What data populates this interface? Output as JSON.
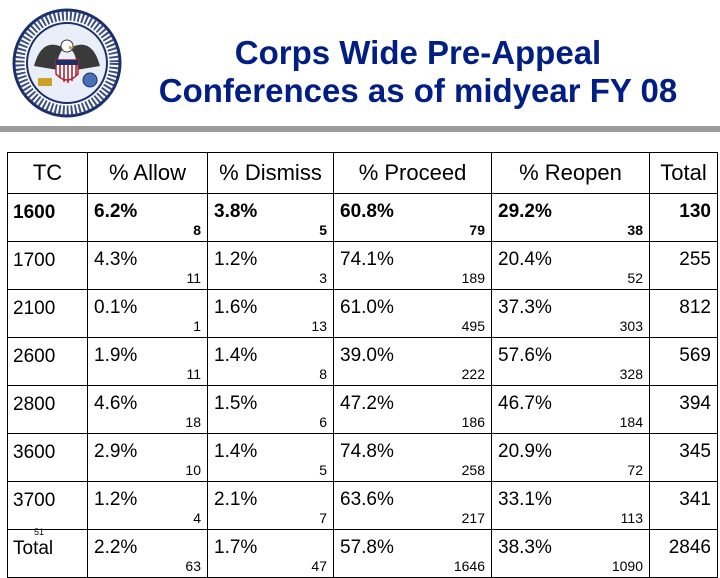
{
  "title": {
    "line1": "Corps Wide Pre-Appeal",
    "line2": "Conferences as of midyear FY 08"
  },
  "seal": {
    "text": "UNITED STATES PATENT AND TRADEMARK OFFICE · DEPARTMENT OF COMMERCE"
  },
  "table": {
    "headers": [
      "TC",
      "% Allow",
      "% Dismiss",
      "% Proceed",
      "% Reopen",
      "Total"
    ],
    "rows": [
      {
        "tc": "1600",
        "allow": "6.2%",
        "allow_n": "8",
        "dismiss": "3.8%",
        "dismiss_n": "5",
        "proceed": "60.8%",
        "proceed_n": "79",
        "reopen": "29.2%",
        "reopen_n": "38",
        "total": "130"
      },
      {
        "tc": "1700",
        "allow": "4.3%",
        "allow_n": "11",
        "dismiss": "1.2%",
        "dismiss_n": "3",
        "proceed": "74.1%",
        "proceed_n": "189",
        "reopen": "20.4%",
        "reopen_n": "52",
        "total": "255"
      },
      {
        "tc": "2100",
        "allow": "0.1%",
        "allow_n": "1",
        "dismiss": "1.6%",
        "dismiss_n": "13",
        "proceed": "61.0%",
        "proceed_n": "495",
        "reopen": "37.3%",
        "reopen_n": "303",
        "total": "812"
      },
      {
        "tc": "2600",
        "allow": "1.9%",
        "allow_n": "11",
        "dismiss": "1.4%",
        "dismiss_n": "8",
        "proceed": "39.0%",
        "proceed_n": "222",
        "reopen": "57.6%",
        "reopen_n": "328",
        "total": "569"
      },
      {
        "tc": "2800",
        "allow": "4.6%",
        "allow_n": "18",
        "dismiss": "1.5%",
        "dismiss_n": "6",
        "proceed": "47.2%",
        "proceed_n": "186",
        "reopen": "46.7%",
        "reopen_n": "184",
        "total": "394"
      },
      {
        "tc": "3600",
        "allow": "2.9%",
        "allow_n": "10",
        "dismiss": "1.4%",
        "dismiss_n": "5",
        "proceed": "74.8%",
        "proceed_n": "258",
        "reopen": "20.9%",
        "reopen_n": "72",
        "total": "345"
      },
      {
        "tc": "3700",
        "allow": "1.2%",
        "allow_n": "4",
        "dismiss": "2.1%",
        "dismiss_n": "7",
        "proceed": "63.6%",
        "proceed_n": "217",
        "reopen": "33.1%",
        "reopen_n": "113",
        "total": "341"
      },
      {
        "tc": "Total",
        "allow": "2.2%",
        "allow_n": "63",
        "dismiss": "1.7%",
        "dismiss_n": "47",
        "proceed": "57.8%",
        "proceed_n": "1646",
        "reopen": "38.3%",
        "reopen_n": "1090",
        "total": "2846"
      }
    ]
  },
  "slide_number": "51",
  "colors": {
    "title": "#001e84",
    "rule": "#9c9c9c",
    "seal_blue": "#1b2f6b",
    "seal_gold": "#c9a227"
  }
}
